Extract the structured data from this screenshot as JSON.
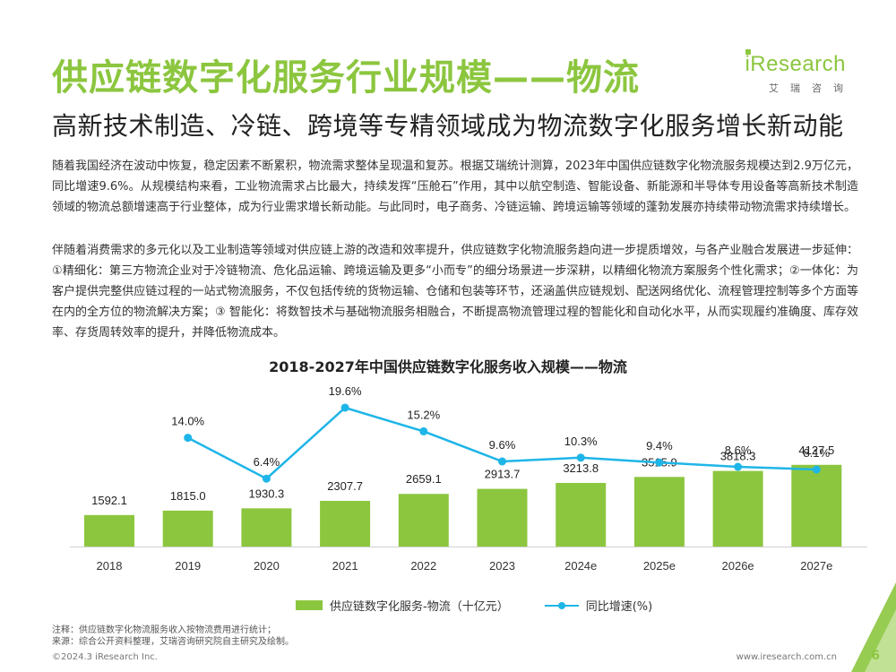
{
  "header": {
    "title": "供应链数字化服务行业规模——物流",
    "subtitle": "高新技术制造、冷链、跨境等专精领域成为物流数字化服务增长新动能",
    "logo_main": "iResearch",
    "logo_sub": "艾瑞咨询"
  },
  "body": {
    "paragraph1": "随着我国经济在波动中恢复，稳定因素不断累积，物流需求整体呈现温和复苏。根据艾瑞统计测算，2023年中国供应链数字化物流服务规模达到2.9万亿元，同比增速9.6%。从规模结构来看，工业物流需求占比最大，持续发挥“压舱石”作用，其中以航空制造、智能设备、新能源和半导体专用设备等高新技术制造领域的物流总额增速高于行业整体，成为行业需求增长新动能。与此同时，电子商务、冷链运输、跨境运输等领域的蓬勃发展亦持续带动物流需求持续增长。",
    "paragraph2": "伴随着消费需求的多元化以及工业制造等领域对供应链上游的改造和效率提升，供应链数字化物流服务趋向进一步提质增效，与各产业融合发展进一步延伸：  ①精细化：第三方物流企业对于冷链物流、危化品运输、跨境运输及更多“小而专”的细分场景进一步深耕，以精细化物流方案服务个性化需求；②一体化：为客户提供完整供应链过程的一站式物流服务，不仅包括传统的货物运输、仓储和包装等环节，还涵盖供应链规划、配送网络优化、流程管理控制等多个方面等在内的全方位的物流解决方案；③ 智能化：将数智技术与基础物流服务相融合，不断提高物流管理过程的智能化和自动化水平，从而实现履约准确度、库存效率、存货周转效率的提升，并降低物流成本。"
  },
  "chart_data": {
    "type": "bar+line",
    "title": "2018-2027年中国供应链数字化服务收入规模——物流",
    "categories": [
      "2018",
      "2019",
      "2020",
      "2021",
      "2022",
      "2023",
      "2024e",
      "2025e",
      "2026e",
      "2027e"
    ],
    "series": [
      {
        "name": "供应链数字化服务-物流（十亿元）",
        "type": "bar",
        "values": [
          1592.1,
          1815.0,
          1930.3,
          2307.7,
          2659.1,
          2913.7,
          3213.8,
          3515.9,
          3818.3,
          4127.5
        ],
        "labels": [
          "1592.1",
          "1815.0",
          "1930.3",
          "2307.7",
          "2659.1",
          "2913.7",
          "3213.8",
          "3515.9",
          "3818.3",
          "4127.5"
        ],
        "color": "#8cc63f"
      },
      {
        "name": "同比增速(%)",
        "type": "line",
        "values": [
          null,
          14.0,
          6.4,
          19.6,
          15.2,
          9.6,
          10.3,
          9.4,
          8.6,
          8.1
        ],
        "labels": [
          null,
          "14.0%",
          "6.4%",
          "19.6%",
          "15.2%",
          "9.6%",
          "10.3%",
          "9.4%",
          "8.6%",
          "8.1%"
        ],
        "color": "#1eb5e8"
      }
    ],
    "legend": "bottom"
  },
  "notes": {
    "note": "注释：供应链数字化物流服务收入按物流费用进行统计；",
    "source": "来源：综合公开资料整理，艾瑞咨询研究院自主研究及绘制。"
  },
  "footer": {
    "copyright": "©2024.3 iResearch Inc.",
    "url": "www.iresearch.com.cn",
    "page": "6"
  },
  "colors": {
    "accent": "#8cc63f",
    "line": "#1eb5e8"
  }
}
